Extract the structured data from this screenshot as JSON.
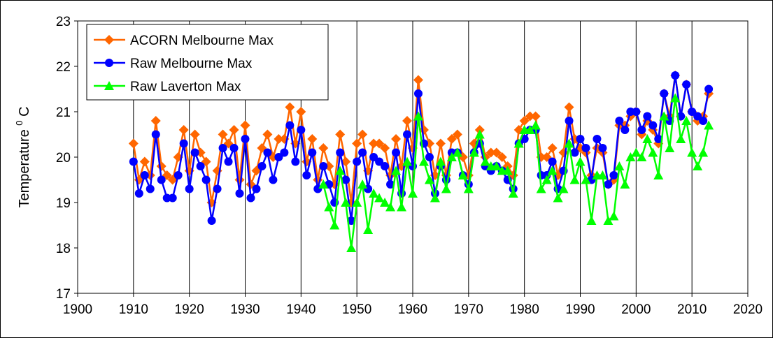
{
  "chart_data": {
    "type": "line",
    "ylabel": "Temperature",
    "ylabel_sup": "0",
    "ylabel_unit": "C",
    "xlim": [
      1900,
      2020
    ],
    "ylim": [
      17,
      23
    ],
    "xticks": [
      1900,
      1910,
      1920,
      1930,
      1940,
      1950,
      1960,
      1970,
      1980,
      1990,
      2000,
      2010,
      2020
    ],
    "yticks": [
      17,
      18,
      19,
      20,
      21,
      22,
      23
    ],
    "grid": "vertical",
    "legend_position": "top-left",
    "series": [
      {
        "name": "ACORN Melbourne Max",
        "color": "#ff6600",
        "marker": "diamond",
        "x": [
          1910,
          1911,
          1912,
          1913,
          1914,
          1915,
          1916,
          1917,
          1918,
          1919,
          1920,
          1921,
          1922,
          1923,
          1924,
          1925,
          1926,
          1927,
          1928,
          1929,
          1930,
          1931,
          1932,
          1933,
          1934,
          1935,
          1936,
          1937,
          1938,
          1939,
          1940,
          1941,
          1942,
          1943,
          1944,
          1945,
          1946,
          1947,
          1948,
          1949,
          1950,
          1951,
          1952,
          1953,
          1954,
          1955,
          1956,
          1957,
          1958,
          1959,
          1960,
          1961,
          1962,
          1963,
          1964,
          1965,
          1966,
          1967,
          1968,
          1969,
          1970,
          1971,
          1972,
          1973,
          1974,
          1975,
          1976,
          1977,
          1978,
          1979,
          1980,
          1981,
          1982,
          1983,
          1984,
          1985,
          1986,
          1987,
          1988,
          1989,
          1990,
          1991,
          1992,
          1993,
          1994,
          1995,
          1996,
          1997,
          1998,
          1999,
          2000,
          2001,
          2002,
          2003,
          2004,
          2005,
          2006,
          2007,
          2008,
          2009,
          2010,
          2011,
          2012,
          2013
        ],
        "values": [
          20.3,
          19.5,
          19.9,
          19.6,
          20.8,
          19.8,
          19.6,
          19.5,
          20.0,
          20.6,
          19.7,
          20.5,
          20.1,
          19.9,
          19.0,
          19.7,
          20.5,
          20.3,
          20.6,
          19.5,
          20.7,
          19.4,
          19.7,
          20.2,
          20.5,
          20.0,
          20.4,
          20.4,
          21.1,
          20.3,
          21.0,
          19.9,
          20.4,
          19.5,
          20.2,
          19.8,
          19.4,
          20.5,
          19.9,
          19.0,
          20.3,
          20.5,
          19.7,
          20.3,
          20.3,
          20.2,
          19.6,
          20.4,
          19.8,
          20.8,
          20.2,
          21.7,
          20.6,
          20.3,
          19.6,
          20.3,
          19.6,
          20.4,
          20.5,
          20.0,
          19.6,
          20.3,
          20.6,
          20.0,
          20.1,
          20.1,
          20.0,
          19.8,
          19.6,
          20.6,
          20.8,
          20.9,
          20.9,
          20.0,
          20.0,
          20.2,
          19.6,
          20.1,
          21.1,
          20.4,
          20.2,
          20.1,
          19.6,
          20.2,
          20.1,
          19.4,
          19.5,
          20.7,
          20.7,
          20.9,
          21.0,
          20.5,
          20.8,
          20.6,
          20.3,
          21.4,
          20.9,
          21.8,
          20.9,
          21.6,
          21.0,
          20.8,
          20.9,
          21.4
        ]
      },
      {
        "name": "Raw Melbourne Max",
        "color": "#0000ff",
        "marker": "circle",
        "x": [
          1910,
          1911,
          1912,
          1913,
          1914,
          1915,
          1916,
          1917,
          1918,
          1919,
          1920,
          1921,
          1922,
          1923,
          1924,
          1925,
          1926,
          1927,
          1928,
          1929,
          1930,
          1931,
          1932,
          1933,
          1934,
          1935,
          1936,
          1937,
          1938,
          1939,
          1940,
          1941,
          1942,
          1943,
          1944,
          1945,
          1946,
          1947,
          1948,
          1949,
          1950,
          1951,
          1952,
          1953,
          1954,
          1955,
          1956,
          1957,
          1958,
          1959,
          1960,
          1961,
          1962,
          1963,
          1964,
          1965,
          1966,
          1967,
          1968,
          1969,
          1970,
          1971,
          1972,
          1973,
          1974,
          1975,
          1976,
          1977,
          1978,
          1979,
          1980,
          1981,
          1982,
          1983,
          1984,
          1985,
          1986,
          1987,
          1988,
          1989,
          1990,
          1991,
          1992,
          1993,
          1994,
          1995,
          1996,
          1997,
          1998,
          1999,
          2000,
          2001,
          2002,
          2003,
          2004,
          2005,
          2006,
          2007,
          2008,
          2009,
          2010,
          2011,
          2012,
          2013
        ],
        "values": [
          19.9,
          19.2,
          19.6,
          19.3,
          20.5,
          19.5,
          19.1,
          19.1,
          19.6,
          20.3,
          19.3,
          20.1,
          19.8,
          19.5,
          18.6,
          19.3,
          20.2,
          19.9,
          20.2,
          19.2,
          20.4,
          19.1,
          19.3,
          19.8,
          20.1,
          19.5,
          20.0,
          20.1,
          20.7,
          19.9,
          20.6,
          19.6,
          20.1,
          19.3,
          19.8,
          19.4,
          19.0,
          20.1,
          19.5,
          18.6,
          19.9,
          20.1,
          19.3,
          20.0,
          19.9,
          19.8,
          19.4,
          20.1,
          19.2,
          20.5,
          19.8,
          21.4,
          20.3,
          20.0,
          19.2,
          19.8,
          19.5,
          20.1,
          20.1,
          19.6,
          19.4,
          20.1,
          20.3,
          19.8,
          19.7,
          19.8,
          19.7,
          19.5,
          19.3,
          20.3,
          20.4,
          20.6,
          20.6,
          19.6,
          19.6,
          19.9,
          19.3,
          19.7,
          20.8,
          20.1,
          20.4,
          20.2,
          19.5,
          20.4,
          20.2,
          19.4,
          19.6,
          20.8,
          20.6,
          21.0,
          21.0,
          20.6,
          20.9,
          20.7,
          20.4,
          21.4,
          20.8,
          21.8,
          20.9,
          21.6,
          21.0,
          20.9,
          20.8,
          21.5
        ]
      },
      {
        "name": "Raw Laverton Max",
        "color": "#00ff00",
        "marker": "triangle",
        "x": [
          1944,
          1945,
          1946,
          1947,
          1948,
          1949,
          1950,
          1951,
          1952,
          1953,
          1954,
          1955,
          1956,
          1957,
          1958,
          1959,
          1960,
          1961,
          1962,
          1963,
          1964,
          1965,
          1966,
          1967,
          1968,
          1969,
          1970,
          1971,
          1972,
          1973,
          1974,
          1975,
          1976,
          1977,
          1978,
          1979,
          1980,
          1981,
          1982,
          1983,
          1984,
          1985,
          1986,
          1987,
          1988,
          1989,
          1990,
          1991,
          1992,
          1993,
          1994,
          1995,
          1996,
          1997,
          1998,
          1999,
          2000,
          2001,
          2002,
          2003,
          2004,
          2005,
          2006,
          2007,
          2008,
          2009,
          2010,
          2011,
          2012,
          2013
        ],
        "values": [
          19.4,
          18.9,
          18.5,
          19.7,
          19.0,
          18.0,
          19.0,
          19.4,
          18.4,
          19.2,
          19.1,
          19.0,
          18.9,
          19.7,
          18.9,
          19.9,
          19.2,
          20.9,
          19.9,
          19.5,
          19.1,
          19.9,
          19.3,
          20.0,
          20.1,
          19.6,
          19.3,
          20.1,
          20.5,
          19.9,
          19.8,
          19.8,
          19.7,
          19.7,
          19.2,
          20.3,
          20.6,
          20.6,
          20.7,
          19.3,
          19.5,
          19.7,
          19.1,
          19.3,
          20.3,
          19.5,
          19.9,
          19.5,
          18.6,
          19.6,
          19.6,
          18.6,
          18.7,
          19.8,
          19.4,
          20.0,
          20.1,
          20.0,
          20.4,
          20.1,
          19.6,
          20.9,
          20.2,
          21.3,
          20.4,
          20.8,
          20.1,
          19.8,
          20.1,
          20.7
        ]
      }
    ]
  }
}
